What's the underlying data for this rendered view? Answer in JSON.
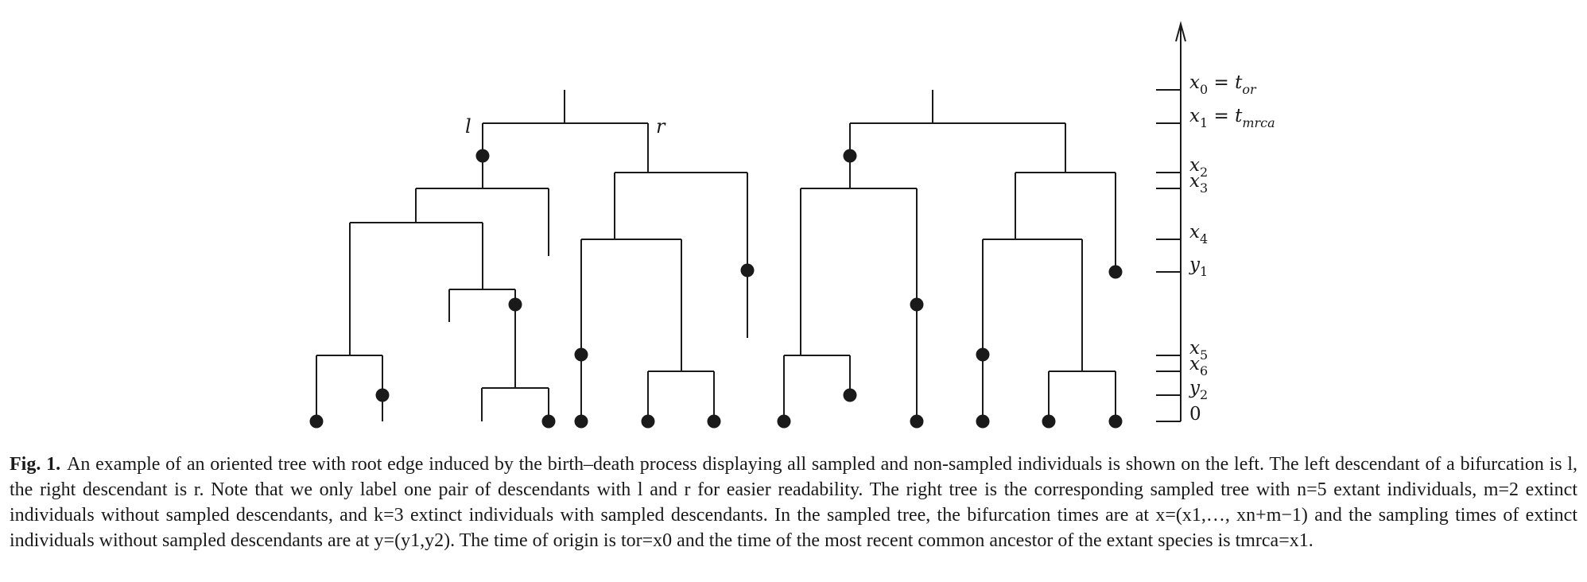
{
  "figure": {
    "left_tree_labels": {
      "left": "l",
      "right": "r"
    },
    "axis_ticks": [
      {
        "var": "x",
        "sub": "0",
        "rhs_var": "t",
        "rhs_sub": "or"
      },
      {
        "var": "x",
        "sub": "1",
        "rhs_var": "t",
        "rhs_sub": "mrca"
      },
      {
        "var": "x",
        "sub": "2"
      },
      {
        "var": "x",
        "sub": "3"
      },
      {
        "var": "x",
        "sub": "4"
      },
      {
        "var": "y",
        "sub": "1"
      },
      {
        "var": "x",
        "sub": "5"
      },
      {
        "var": "x",
        "sub": "6"
      },
      {
        "var": "y",
        "sub": "2"
      },
      {
        "var": "",
        "sub": "",
        "plain": "0"
      }
    ]
  },
  "caption": {
    "label": "Fig. 1.",
    "text": "An example of an oriented tree with root edge induced by the birth–death process displaying all sampled and non-sampled individuals is shown on the left. The left descendant of a bifurcation is l, the right descendant is r. Note that we only label one pair of descendants with l and r for easier readability. The right tree is the corresponding sampled tree with n=5 extant individuals, m=2 extinct individuals without sampled descendants, and k=3 extinct individuals with sampled descendants. In the sampled tree, the bifurcation times are at x=(x1,…, xn+m−1) and the sampling times of extinct individuals without sampled descendants are at y=(y1,y2). The time of origin is tor=x0 and the time of the most recent common ancestor of the extant species is tmrca=x1."
  }
}
